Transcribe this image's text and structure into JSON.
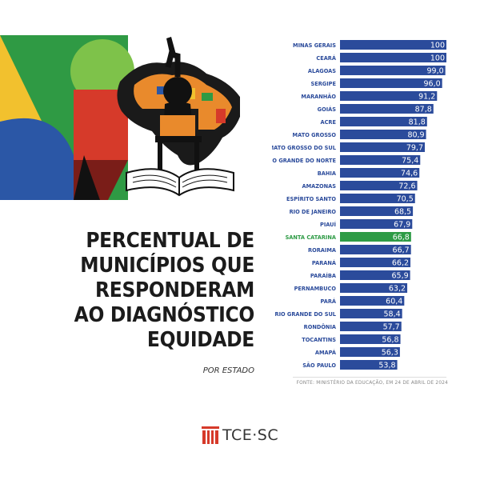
{
  "headline": {
    "lines": [
      "PERCENTUAL DE",
      "MUNICÍPIOS QUE",
      "RESPONDERAM",
      "AO DIAGNÓSTICO",
      "EQUIDADE"
    ],
    "subtitle": "POR ESTADO"
  },
  "chart_data": {
    "type": "bar",
    "orientation": "horizontal",
    "categories": [
      "MINAS GERAIS",
      "CEARÁ",
      "ALAGOAS",
      "SERGIPE",
      "MARANHÃO",
      "GOIÁS",
      "ACRE",
      "MATO GROSSO",
      "MATO GROSSO DO SUL",
      "RIO GRANDE DO NORTE",
      "BAHIA",
      "AMAZONAS",
      "ESPÍRITO SANTO",
      "RIO DE JANEIRO",
      "PIAUÍ",
      "SANTA CATARINA",
      "RORAIMA",
      "PARANÁ",
      "PARAÍBA",
      "PERNAMBUCO",
      "PARÁ",
      "RIO GRANDE DO SUL",
      "RONDÔNIA",
      "TOCANTINS",
      "AMAPÁ",
      "SÃO PAULO"
    ],
    "values": [
      100,
      100,
      99.0,
      96.0,
      91.2,
      87.8,
      81.8,
      80.9,
      79.7,
      75.4,
      74.6,
      72.6,
      70.5,
      68.5,
      67.9,
      66.8,
      66.7,
      66.2,
      65.9,
      63.2,
      60.4,
      58.4,
      57.7,
      56.8,
      56.3,
      53.8
    ],
    "value_labels": [
      "100",
      "100",
      "99,0",
      "96,0",
      "91,2",
      "87,8",
      "81,8",
      "80,9",
      "79,7",
      "75,4",
      "74,6",
      "72,6",
      "70,5",
      "68,5",
      "67,9",
      "66,8",
      "66,7",
      "66,2",
      "65,9",
      "63,2",
      "60,4",
      "58,4",
      "57,7",
      "56,8",
      "56,3",
      "53,8"
    ],
    "highlight": "SANTA CATARINA",
    "xlim": [
      0,
      100
    ],
    "colors": {
      "bar": "#2b4b9b",
      "highlight_bar": "#2e9b45",
      "label": "#2b4b9b",
      "highlight_label": "#2e9b45",
      "value_text": "#ffffff"
    }
  },
  "source": "FONTE: MINISTÉRIO DA EDUCAÇÃO, EM 24 DE ABRIL DE 2024",
  "logo": {
    "text": "TCE·SC",
    "icon": "tce-columns-icon"
  },
  "decoration": {
    "icon": "child-reading-map-icon",
    "colors": [
      "#f2c12e",
      "#2f9a44",
      "#d63a2a",
      "#2b57a6",
      "#111111"
    ]
  }
}
